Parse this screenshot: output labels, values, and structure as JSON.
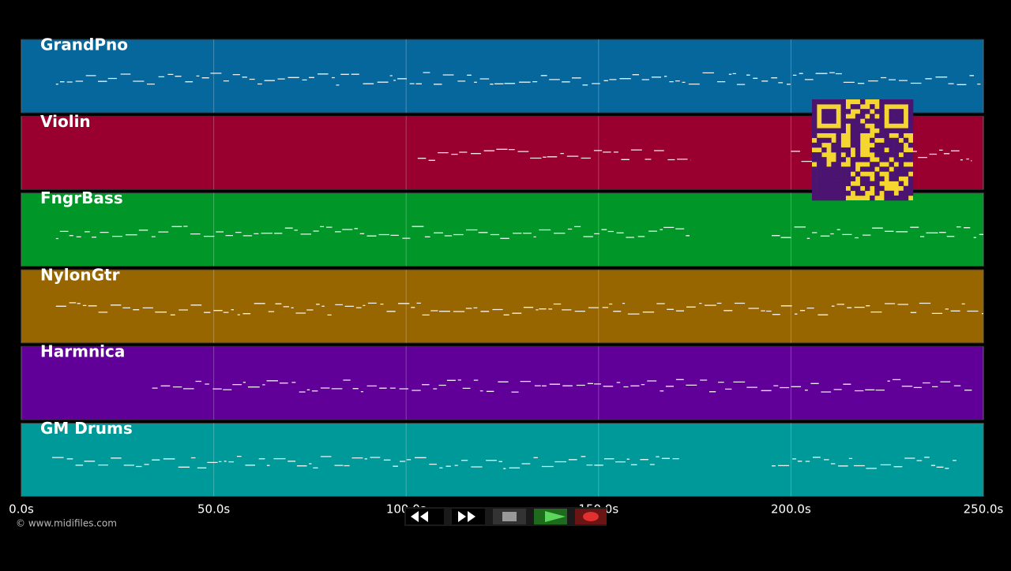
{
  "tracks": [
    {
      "name": "GrandPno",
      "color": "#05679c",
      "spans": [
        [
          9,
          250
        ]
      ]
    },
    {
      "name": "Violin",
      "color": "#990030",
      "spans": [
        [
          103,
          174
        ],
        [
          200,
          247
        ]
      ]
    },
    {
      "name": "FngrBass",
      "color": "#009628",
      "spans": [
        [
          9,
          174
        ],
        [
          195,
          250
        ]
      ]
    },
    {
      "name": "NylonGtr",
      "color": "#986600",
      "spans": [
        [
          9,
          250
        ]
      ]
    },
    {
      "name": "Harmnica",
      "color": "#600099",
      "spans": [
        [
          34,
          247
        ]
      ]
    },
    {
      "name": "GM Drums",
      "color": "#009999",
      "spans": [
        [
          8,
          171
        ],
        [
          195,
          243
        ]
      ]
    }
  ],
  "timeline": {
    "range": [
      0,
      250
    ],
    "ticks": [
      {
        "value": 0,
        "label": "0.0s"
      },
      {
        "value": 50,
        "label": "50.0s"
      },
      {
        "value": 100,
        "label": "100.0s"
      },
      {
        "value": 150,
        "label": "150.0s"
      },
      {
        "value": 200,
        "label": "200.0s"
      },
      {
        "value": 250,
        "label": "250.0s"
      }
    ]
  },
  "copyright": "© www.midifiles.com"
}
